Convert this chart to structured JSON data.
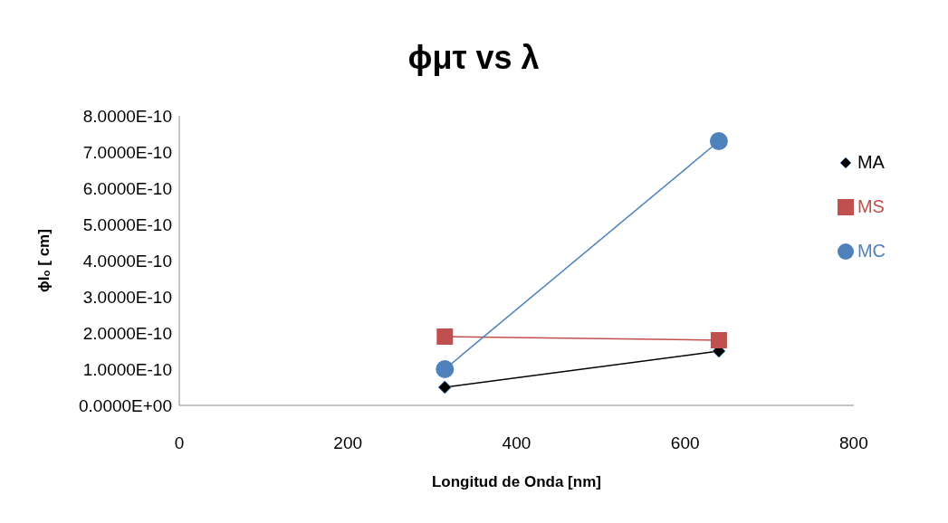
{
  "chart_data": {
    "type": "line",
    "title": "ϕμτ  vs λ",
    "xlabel": "Longitud de Onda [nm]",
    "ylabel": "ϕIₒ [ cm]",
    "x": [
      315,
      640
    ],
    "series": [
      {
        "name": "MA",
        "color": "#000000",
        "marker": "diamond",
        "values": [
          5e-11,
          1.5e-10
        ]
      },
      {
        "name": "MS",
        "color": "#c0504d",
        "marker": "square",
        "values": [
          1.9e-10,
          1.8e-10
        ]
      },
      {
        "name": "MC",
        "color": "#4f81bd",
        "marker": "circle",
        "values": [
          1e-10,
          7.3e-10
        ]
      }
    ],
    "xlim": [
      0,
      800
    ],
    "xticks": [
      0,
      200,
      400,
      600,
      800
    ],
    "ylim": [
      0,
      8e-10
    ],
    "yticks": [
      {
        "value": 0,
        "label": "0.0000E+00"
      },
      {
        "value": 1e-10,
        "label": "1.0000E-10"
      },
      {
        "value": 2e-10,
        "label": "2.0000E-10"
      },
      {
        "value": 3e-10,
        "label": "3.0000E-10"
      },
      {
        "value": 4e-10,
        "label": "4.0000E-10"
      },
      {
        "value": 5e-10,
        "label": "5.0000E-10"
      },
      {
        "value": 6e-10,
        "label": "6.0000E-10"
      },
      {
        "value": 7e-10,
        "label": "7.0000E-10"
      },
      {
        "value": 8e-10,
        "label": "8.0000E-10"
      }
    ],
    "grid": false,
    "legend": "right"
  }
}
